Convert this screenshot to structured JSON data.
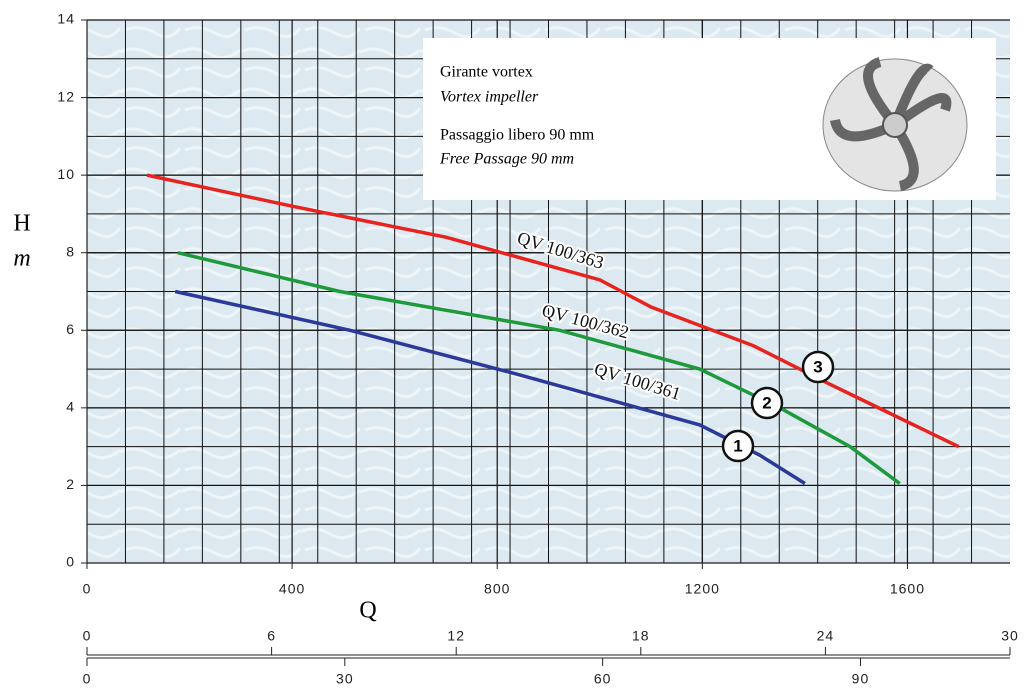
{
  "chart_data": {
    "type": "line",
    "xlabel": "Q",
    "ylabel": "H",
    "yunit": "m",
    "xlim": [
      0,
      1800
    ],
    "xticks": [
      0,
      400,
      800,
      1200,
      1600
    ],
    "ylim": [
      0,
      14
    ],
    "yticks": [
      0,
      2,
      4,
      6,
      8,
      10,
      12,
      14
    ],
    "x2lim": [
      0,
      30
    ],
    "x2ticks": [
      0,
      6,
      12,
      18,
      24,
      30
    ],
    "x3lim": [
      0,
      107.4
    ],
    "x3ticks": [
      0,
      30,
      60,
      90
    ],
    "grid": true,
    "annotations": [
      "Girante vortex",
      "Vortex impeller",
      "Passaggio libero 90 mm",
      "Free Passage 90 mm"
    ],
    "series": [
      {
        "name": "QV 100/361",
        "marker": "1",
        "color": "#2b3a9a",
        "x": [
          172,
          513,
          844,
          1195,
          1312,
          1400
        ],
        "values": [
          7.0,
          6.0,
          4.85,
          3.56,
          2.78,
          2.05
        ]
      },
      {
        "name": "QV 100/362",
        "marker": "2",
        "color": "#1e9a3c",
        "x": [
          177,
          493,
          922,
          1195,
          1351,
          1488,
          1585
        ],
        "values": [
          8.0,
          7.0,
          6.0,
          5.0,
          4.0,
          3.0,
          2.05
        ]
      },
      {
        "name": "QV 100/363",
        "marker": "3",
        "color": "#e8231f",
        "x": [
          117,
          400,
          700,
          1000,
          1100,
          1300,
          1450,
          1700
        ],
        "values": [
          10.0,
          9.2,
          8.4,
          7.3,
          6.6,
          5.6,
          4.6,
          3.0
        ]
      }
    ]
  }
}
